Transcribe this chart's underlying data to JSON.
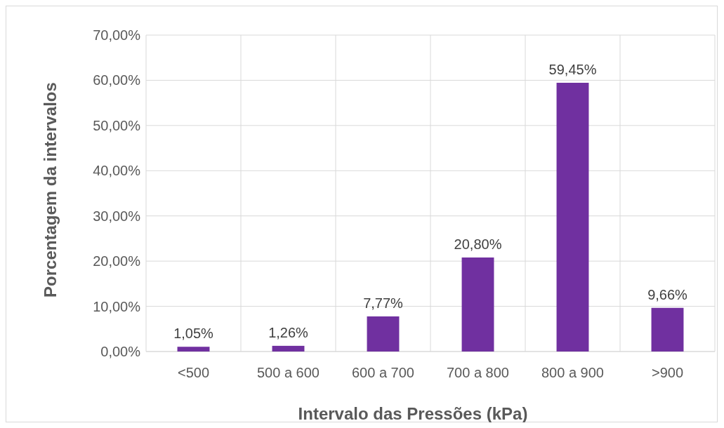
{
  "chart_data": {
    "type": "bar",
    "xlabel": "Intervalo das Pressões (kPa)",
    "ylabel": "Porcentagem da intervalos",
    "categories": [
      "<500",
      "500 a 600",
      "600 a 700",
      "700 a 800",
      "800 a 900",
      ">900"
    ],
    "values": [
      1.05,
      1.26,
      7.77,
      20.8,
      59.45,
      9.66
    ],
    "value_labels": [
      "1,05%",
      "1,26%",
      "7,77%",
      "20,80%",
      "59,45%",
      "9,66%"
    ],
    "color": "#7030a0",
    "ylim": [
      0,
      70
    ],
    "yticks": [
      {
        "value": 0,
        "label": "0,00%"
      },
      {
        "value": 10,
        "label": "10,00%"
      },
      {
        "value": 20,
        "label": "20,00%"
      },
      {
        "value": 30,
        "label": "30,00%"
      },
      {
        "value": 40,
        "label": "40,00%"
      },
      {
        "value": 50,
        "label": "50,00%"
      },
      {
        "value": 60,
        "label": "60,00%"
      },
      {
        "value": 70,
        "label": "70,00%"
      }
    ],
    "grid": true
  }
}
